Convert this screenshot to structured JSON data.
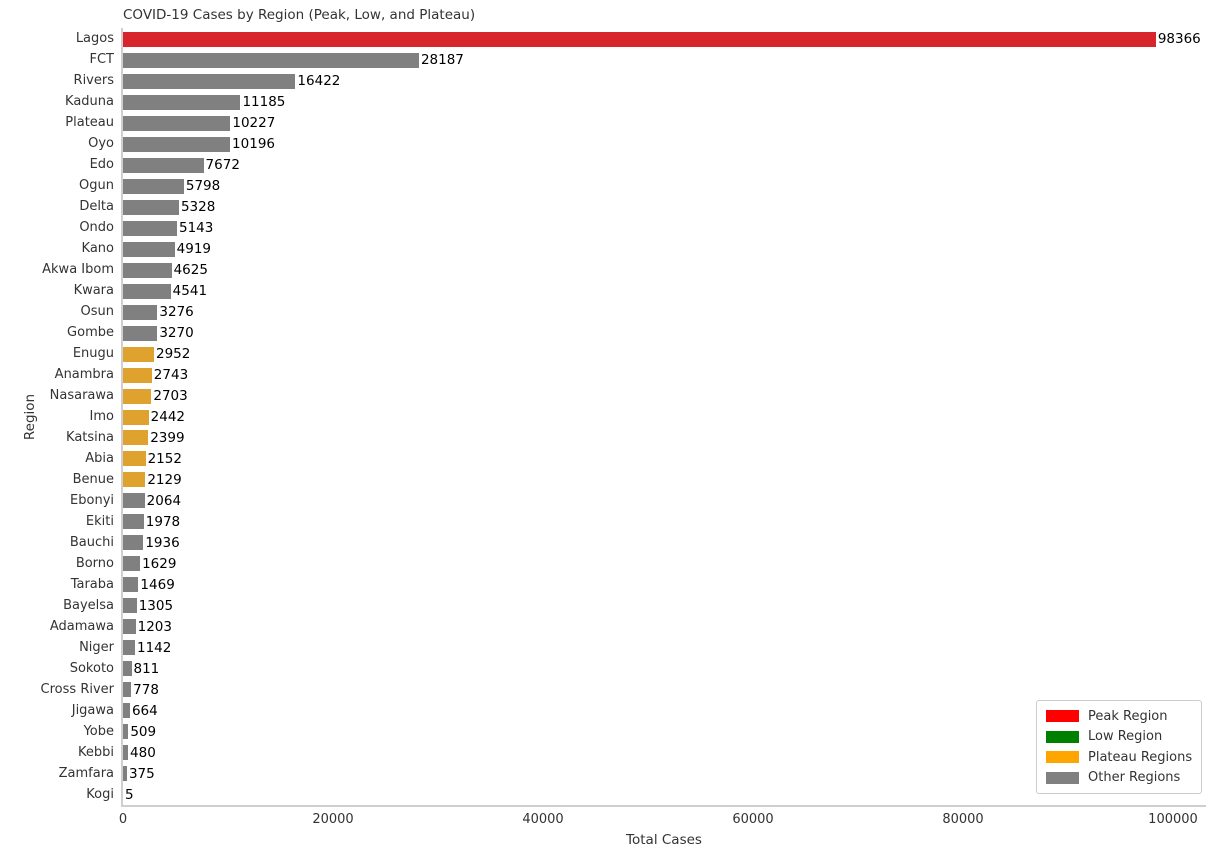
{
  "chart_data": {
    "type": "bar",
    "orientation": "horizontal",
    "title": "COVID-19 Cases by Region (Peak, Low, and Plateau)",
    "xlabel": "Total Cases",
    "ylabel": "Region",
    "xlim": [
      0,
      103300
    ],
    "xticks": [
      0,
      20000,
      40000,
      60000,
      80000,
      100000
    ],
    "grid": false,
    "value_labels": true,
    "group_colors": {
      "peak": "#d8242b",
      "low": "#008000",
      "plateau": "#e0a22f",
      "other": "#808080"
    },
    "bars": [
      {
        "region": "Lagos",
        "value": 98366,
        "group": "peak"
      },
      {
        "region": "FCT",
        "value": 28187,
        "group": "other"
      },
      {
        "region": "Rivers",
        "value": 16422,
        "group": "other"
      },
      {
        "region": "Kaduna",
        "value": 11185,
        "group": "other"
      },
      {
        "region": "Plateau",
        "value": 10227,
        "group": "other"
      },
      {
        "region": "Oyo",
        "value": 10196,
        "group": "other"
      },
      {
        "region": "Edo",
        "value": 7672,
        "group": "other"
      },
      {
        "region": "Ogun",
        "value": 5798,
        "group": "other"
      },
      {
        "region": "Delta",
        "value": 5328,
        "group": "other"
      },
      {
        "region": "Ondo",
        "value": 5143,
        "group": "other"
      },
      {
        "region": "Kano",
        "value": 4919,
        "group": "other"
      },
      {
        "region": "Akwa Ibom",
        "value": 4625,
        "group": "other"
      },
      {
        "region": "Kwara",
        "value": 4541,
        "group": "other"
      },
      {
        "region": "Osun",
        "value": 3276,
        "group": "other"
      },
      {
        "region": "Gombe",
        "value": 3270,
        "group": "other"
      },
      {
        "region": "Enugu",
        "value": 2952,
        "group": "plateau"
      },
      {
        "region": "Anambra",
        "value": 2743,
        "group": "plateau"
      },
      {
        "region": "Nasarawa",
        "value": 2703,
        "group": "plateau"
      },
      {
        "region": "Imo",
        "value": 2442,
        "group": "plateau"
      },
      {
        "region": "Katsina",
        "value": 2399,
        "group": "plateau"
      },
      {
        "region": "Abia",
        "value": 2152,
        "group": "plateau"
      },
      {
        "region": "Benue",
        "value": 2129,
        "group": "plateau"
      },
      {
        "region": "Ebonyi",
        "value": 2064,
        "group": "other"
      },
      {
        "region": "Ekiti",
        "value": 1978,
        "group": "other"
      },
      {
        "region": "Bauchi",
        "value": 1936,
        "group": "other"
      },
      {
        "region": "Borno",
        "value": 1629,
        "group": "other"
      },
      {
        "region": "Taraba",
        "value": 1469,
        "group": "other"
      },
      {
        "region": "Bayelsa",
        "value": 1305,
        "group": "other"
      },
      {
        "region": "Adamawa",
        "value": 1203,
        "group": "other"
      },
      {
        "region": "Niger",
        "value": 1142,
        "group": "other"
      },
      {
        "region": "Sokoto",
        "value": 811,
        "group": "other"
      },
      {
        "region": "Cross River",
        "value": 778,
        "group": "other"
      },
      {
        "region": "Jigawa",
        "value": 664,
        "group": "other"
      },
      {
        "region": "Yobe",
        "value": 509,
        "group": "other"
      },
      {
        "region": "Kebbi",
        "value": 480,
        "group": "other"
      },
      {
        "region": "Zamfara",
        "value": 375,
        "group": "other"
      },
      {
        "region": "Kogi",
        "value": 5,
        "group": "low"
      }
    ],
    "legend": {
      "position": "lower right",
      "entries": [
        {
          "label": "Peak Region",
          "color": "#ff0000"
        },
        {
          "label": "Low Region",
          "color": "#008000"
        },
        {
          "label": "Plateau Regions",
          "color": "#ffa500"
        },
        {
          "label": "Other Regions",
          "color": "#808080"
        }
      ]
    }
  }
}
